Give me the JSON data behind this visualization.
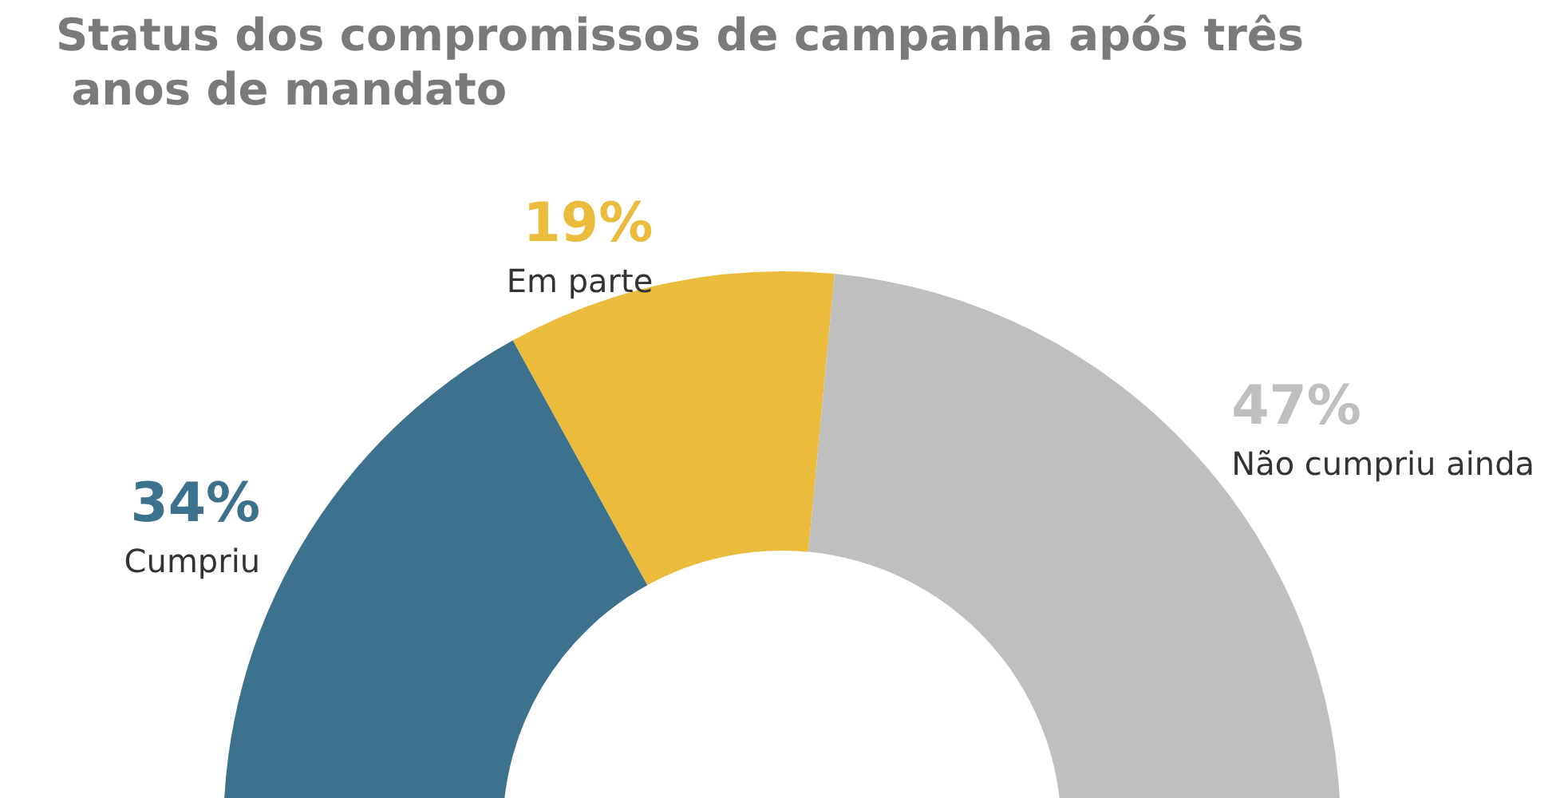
{
  "chart_data": {
    "type": "donut",
    "title": "Status dos compromissos de campanha após três anos de mandato",
    "categories": [
      "Cumpriu",
      "Em parte",
      "Não cumpriu ainda"
    ],
    "values": [
      34,
      19,
      47
    ],
    "colors": [
      "#3d728f",
      "#ebbb3c",
      "#bfbfbf"
    ],
    "value_labels": [
      "34%",
      "19%",
      "47%"
    ],
    "legend": false
  }
}
